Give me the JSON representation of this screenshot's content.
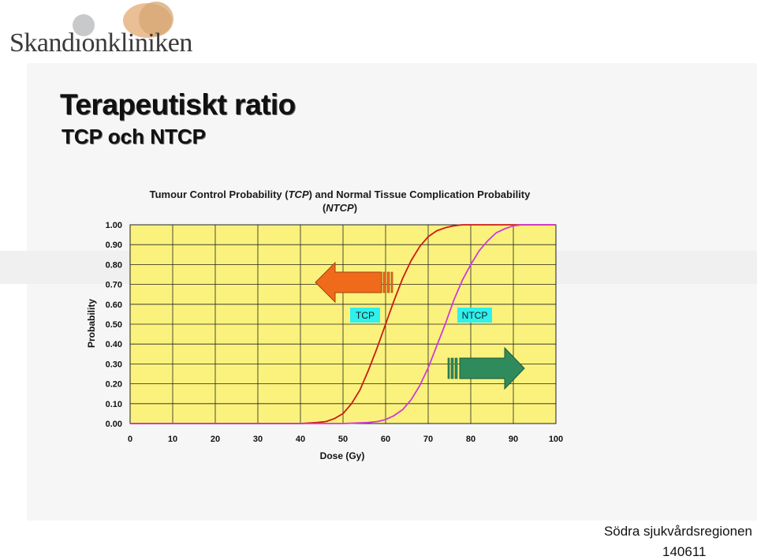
{
  "logo": {
    "text": "Skandıonkliniken"
  },
  "slide": {
    "title": "Terapeutiskt ratio",
    "subtitle": "TCP och NTCP"
  },
  "footer": {
    "region": "Södra sjukvårdsregionen",
    "date": "140611"
  },
  "colors": {
    "plot_bg": "#faf27d",
    "tcp": "#cc1a14",
    "ntcp": "#cf3ad6",
    "arrow_left": "#f06a1c",
    "arrow_right": "#2f8a5c",
    "callout_bg": "#2ef0ee"
  },
  "chart_data": {
    "type": "line",
    "title_line1_parts": [
      "Tumour Control Probability (",
      "TCP",
      ") and Normal Tissue Complication Probability"
    ],
    "title_line2_parts": [
      "(",
      "NTCP",
      ")"
    ],
    "xlabel": "Dose (Gy)",
    "ylabel": "Probability",
    "xlim": [
      0,
      100
    ],
    "ylim": [
      0,
      1
    ],
    "xticks": [
      "0",
      "10",
      "20",
      "30",
      "40",
      "50",
      "60",
      "70",
      "80",
      "90",
      "100"
    ],
    "yticks": [
      "0.00",
      "0.10",
      "0.20",
      "0.30",
      "0.40",
      "0.50",
      "0.60",
      "0.70",
      "0.80",
      "0.90",
      "1.00"
    ],
    "grid": true,
    "legend": "none",
    "annotations": [
      {
        "text": "TCP",
        "arrow": "left"
      },
      {
        "text": "NTCP",
        "arrow": "right"
      }
    ],
    "series": [
      {
        "name": "TCP",
        "x": [
          40,
          44,
          46,
          48,
          50,
          52,
          54,
          56,
          58,
          60,
          62,
          64,
          66,
          68,
          70,
          72,
          74,
          76,
          78,
          80
        ],
        "values": [
          0.0,
          0.005,
          0.01,
          0.025,
          0.05,
          0.1,
          0.17,
          0.27,
          0.38,
          0.5,
          0.62,
          0.73,
          0.82,
          0.89,
          0.94,
          0.97,
          0.985,
          0.995,
          1.0,
          1.0
        ]
      },
      {
        "name": "NTCP",
        "x": [
          50,
          56,
          58,
          60,
          62,
          64,
          66,
          68,
          70,
          72,
          74,
          76,
          78,
          80,
          82,
          84,
          86,
          88,
          90,
          92,
          100
        ],
        "values": [
          0.0,
          0.005,
          0.01,
          0.02,
          0.04,
          0.07,
          0.12,
          0.19,
          0.28,
          0.39,
          0.5,
          0.62,
          0.72,
          0.8,
          0.87,
          0.92,
          0.96,
          0.98,
          0.995,
          1.0,
          1.0
        ]
      }
    ]
  }
}
